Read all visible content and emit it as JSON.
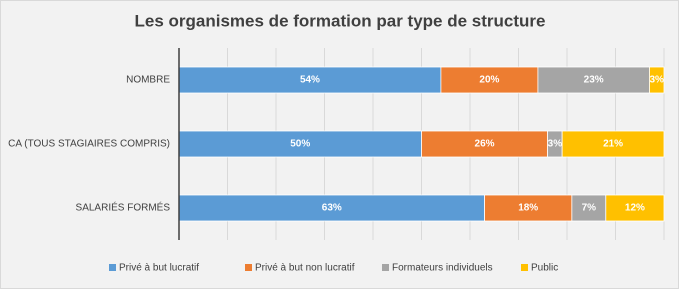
{
  "chart_data": {
    "type": "bar",
    "orientation": "horizontal",
    "stacked": true,
    "title": "Les organismes de formation par type de structure",
    "categories": [
      "NOMBRE",
      "CA (TOUS STAGIAIRES COMPRIS)",
      "SALARIÉS FORMÉS"
    ],
    "series": [
      {
        "name": "Privé à but lucratif",
        "color": "#5b9bd5",
        "values": [
          54,
          50,
          63
        ],
        "value_labels": [
          "54%",
          "50%",
          "63%"
        ]
      },
      {
        "name": "Privé à but non lucratif",
        "color": "#ed7d31",
        "values": [
          20,
          26,
          18
        ],
        "value_labels": [
          "20%",
          "26%",
          "18%"
        ]
      },
      {
        "name": "Formateurs individuels",
        "color": "#a5a5a5",
        "values": [
          23,
          3,
          7
        ],
        "value_labels": [
          "23%",
          "3%",
          "7%"
        ]
      },
      {
        "name": "Public",
        "color": "#ffc000",
        "values": [
          3,
          21,
          12
        ],
        "value_labels": [
          "3%",
          "21%",
          "12%"
        ]
      }
    ],
    "xlim": [
      0,
      100
    ],
    "grid": true,
    "legend": "bottom"
  }
}
